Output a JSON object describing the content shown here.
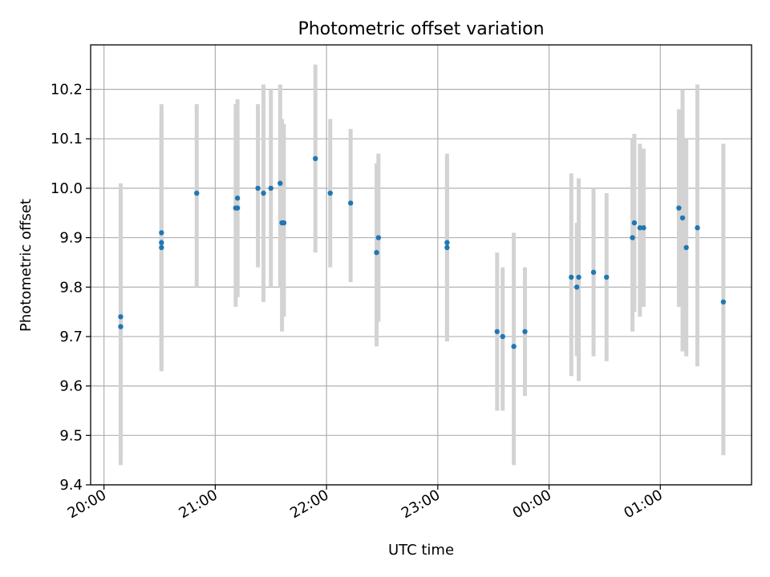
{
  "chart_data": {
    "type": "scatter",
    "title": "Photometric offset variation",
    "xlabel": "UTC time",
    "ylabel": "Photometric offset",
    "x_tick_labels": [
      "20:00",
      "21:00",
      "22:00",
      "23:00",
      "00:00",
      "01:00"
    ],
    "x_tick_hours": [
      0,
      1,
      2,
      3,
      4,
      5
    ],
    "x_axis_zero_time": "20:00",
    "xlim_hours": [
      -0.12,
      5.82
    ],
    "ylim": [
      9.4,
      10.29
    ],
    "y_ticks": [
      9.4,
      9.5,
      9.6,
      9.7,
      9.8,
      9.9,
      10.0,
      10.1,
      10.2
    ],
    "y_tick_labels": [
      "9.4",
      "9.5",
      "9.6",
      "9.7",
      "9.8",
      "9.9",
      "10.0",
      "10.1",
      "10.2"
    ],
    "grid": true,
    "marker_color": "#1f77b4",
    "errorbar_color": "#d3d3d3",
    "points": [
      {
        "t": "20:09",
        "y": 9.74,
        "lo": 9.47,
        "hi": 10.01
      },
      {
        "t": "20:09",
        "y": 9.72,
        "lo": 9.44,
        "hi": 10.0
      },
      {
        "t": "20:31",
        "y": 9.91,
        "lo": 9.65,
        "hi": 10.17
      },
      {
        "t": "20:31",
        "y": 9.89,
        "lo": 9.63,
        "hi": 10.15
      },
      {
        "t": "20:31",
        "y": 9.88,
        "lo": 9.63,
        "hi": 10.13
      },
      {
        "t": "20:50",
        "y": 9.99,
        "lo": 9.8,
        "hi": 10.17
      },
      {
        "t": "21:11",
        "y": 9.96,
        "lo": 9.76,
        "hi": 10.17
      },
      {
        "t": "21:12",
        "y": 9.96,
        "lo": 9.78,
        "hi": 10.14
      },
      {
        "t": "21:12",
        "y": 9.98,
        "lo": 9.78,
        "hi": 10.18
      },
      {
        "t": "21:23",
        "y": 10.0,
        "lo": 9.84,
        "hi": 10.17
      },
      {
        "t": "21:26",
        "y": 9.99,
        "lo": 9.77,
        "hi": 10.21
      },
      {
        "t": "21:30",
        "y": 10.0,
        "lo": 9.8,
        "hi": 10.2
      },
      {
        "t": "21:35",
        "y": 10.01,
        "lo": 9.8,
        "hi": 10.21
      },
      {
        "t": "21:36",
        "y": 9.93,
        "lo": 9.71,
        "hi": 10.14
      },
      {
        "t": "21:37",
        "y": 9.93,
        "lo": 9.74,
        "hi": 10.13
      },
      {
        "t": "21:54",
        "y": 10.06,
        "lo": 9.87,
        "hi": 10.25
      },
      {
        "t": "22:02",
        "y": 9.99,
        "lo": 9.84,
        "hi": 10.14
      },
      {
        "t": "22:13",
        "y": 9.97,
        "lo": 9.81,
        "hi": 10.12
      },
      {
        "t": "22:27",
        "y": 9.87,
        "lo": 9.68,
        "hi": 10.05
      },
      {
        "t": "22:28",
        "y": 9.9,
        "lo": 9.73,
        "hi": 10.07
      },
      {
        "t": "23:05",
        "y": 9.88,
        "lo": 9.69,
        "hi": 10.07
      },
      {
        "t": "23:05",
        "y": 9.89,
        "lo": 9.7,
        "hi": 10.06
      },
      {
        "t": "23:32",
        "y": 9.71,
        "lo": 9.55,
        "hi": 9.87
      },
      {
        "t": "23:35",
        "y": 9.7,
        "lo": 9.55,
        "hi": 9.84
      },
      {
        "t": "23:41",
        "y": 9.68,
        "lo": 9.44,
        "hi": 9.91
      },
      {
        "t": "23:47",
        "y": 9.71,
        "lo": 9.58,
        "hi": 9.84
      },
      {
        "t": "00:12",
        "y": 9.82,
        "lo": 9.62,
        "hi": 10.03
      },
      {
        "t": "00:15",
        "y": 9.8,
        "lo": 9.66,
        "hi": 9.93
      },
      {
        "t": "00:16",
        "y": 9.82,
        "lo": 9.61,
        "hi": 10.02
      },
      {
        "t": "00:24",
        "y": 9.83,
        "lo": 9.66,
        "hi": 10.0
      },
      {
        "t": "00:31",
        "y": 9.82,
        "lo": 9.65,
        "hi": 9.99
      },
      {
        "t": "00:45",
        "y": 9.9,
        "lo": 9.71,
        "hi": 10.1
      },
      {
        "t": "00:46",
        "y": 9.93,
        "lo": 9.75,
        "hi": 10.11
      },
      {
        "t": "00:49",
        "y": 9.92,
        "lo": 9.74,
        "hi": 10.09
      },
      {
        "t": "00:51",
        "y": 9.92,
        "lo": 9.76,
        "hi": 10.08
      },
      {
        "t": "01:10",
        "y": 9.96,
        "lo": 9.76,
        "hi": 10.16
      },
      {
        "t": "01:12",
        "y": 9.94,
        "lo": 9.67,
        "hi": 10.2
      },
      {
        "t": "01:14",
        "y": 9.88,
        "lo": 9.66,
        "hi": 10.1
      },
      {
        "t": "01:20",
        "y": 9.92,
        "lo": 9.64,
        "hi": 10.21
      },
      {
        "t": "01:34",
        "y": 9.77,
        "lo": 9.46,
        "hi": 10.09
      }
    ]
  }
}
